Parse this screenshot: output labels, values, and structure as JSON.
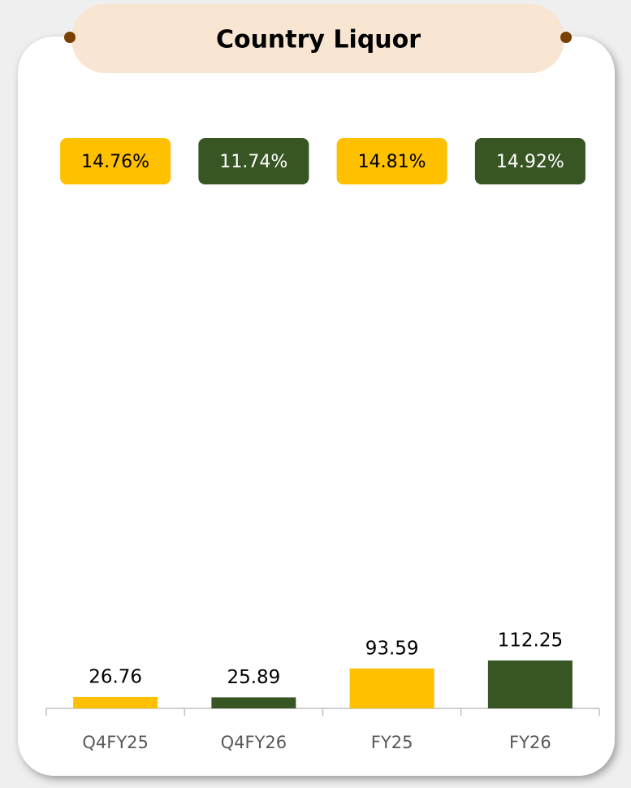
{
  "chart_data": {
    "type": "bar",
    "title": "Country Liquor",
    "categories": [
      "Q4FY25",
      "Q4FY26",
      "FY25",
      "FY26"
    ],
    "values": [
      26.76,
      25.89,
      93.59,
      112.25
    ],
    "colors": [
      "#ffc000",
      "#375623",
      "#ffc000",
      "#375623"
    ],
    "percent_labels": {
      "values": [
        14.76,
        11.74,
        14.81,
        14.92
      ],
      "value_labels": [
        "14.76%",
        "11.74%",
        "14.81%",
        "14.92%"
      ]
    }
  }
}
